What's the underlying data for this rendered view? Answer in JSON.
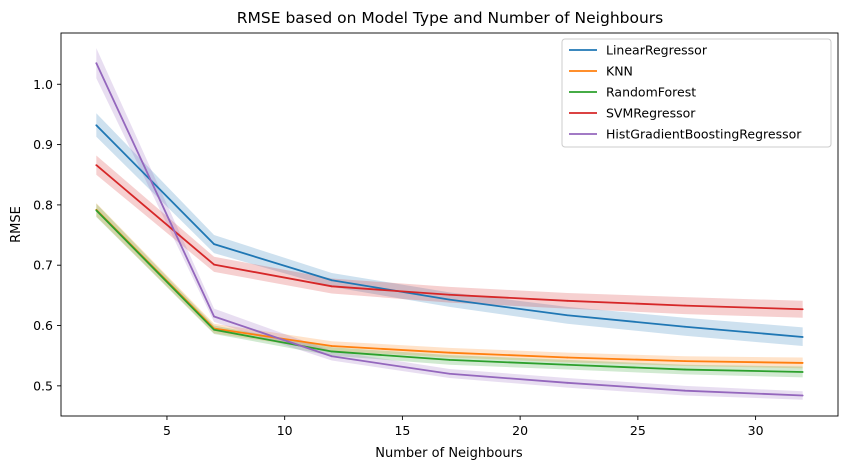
{
  "chart_data": {
    "type": "line",
    "title": "RMSE based on Model Type and Number of Neighbours",
    "xlabel": "Number of Neighbours",
    "ylabel": "RMSE",
    "xlim": [
      0.5,
      33.5
    ],
    "ylim": [
      0.45,
      1.085
    ],
    "x_ticks": [
      5,
      10,
      15,
      20,
      25,
      30
    ],
    "y_ticks": [
      0.5,
      0.6,
      0.7,
      0.8,
      0.9,
      1.0
    ],
    "x_tick_labels": [
      "5",
      "10",
      "15",
      "20",
      "25",
      "30"
    ],
    "y_tick_labels": [
      "0.5",
      "0.6",
      "0.7",
      "0.8",
      "0.9",
      "1.0"
    ],
    "legend_position": "top-right",
    "grid": false,
    "series": [
      {
        "name": "LinearRegressor",
        "color": "#1f77b4",
        "x": [
          2,
          7,
          12,
          17,
          22,
          27,
          32
        ],
        "values": [
          0.932,
          0.735,
          0.675,
          0.643,
          0.617,
          0.598,
          0.581
        ],
        "lower": [
          0.913,
          0.72,
          0.664,
          0.631,
          0.603,
          0.583,
          0.566
        ],
        "upper": [
          0.952,
          0.75,
          0.687,
          0.655,
          0.631,
          0.613,
          0.597
        ]
      },
      {
        "name": "KNN",
        "color": "#ff7f0e",
        "x": [
          2,
          7,
          12,
          17,
          22,
          27,
          32
        ],
        "values": [
          0.792,
          0.595,
          0.566,
          0.555,
          0.547,
          0.541,
          0.538
        ],
        "lower": [
          0.781,
          0.587,
          0.558,
          0.547,
          0.539,
          0.533,
          0.529
        ],
        "upper": [
          0.803,
          0.603,
          0.574,
          0.563,
          0.555,
          0.549,
          0.547
        ]
      },
      {
        "name": "RandomForest",
        "color": "#2ca02c",
        "x": [
          2,
          7,
          12,
          17,
          22,
          27,
          32
        ],
        "values": [
          0.791,
          0.593,
          0.557,
          0.543,
          0.535,
          0.527,
          0.523
        ],
        "lower": [
          0.78,
          0.586,
          0.55,
          0.535,
          0.527,
          0.519,
          0.514
        ],
        "upper": [
          0.802,
          0.6,
          0.564,
          0.551,
          0.543,
          0.535,
          0.532
        ]
      },
      {
        "name": "SVMRegressor",
        "color": "#d62728",
        "x": [
          2,
          7,
          12,
          17,
          22,
          27,
          32
        ],
        "values": [
          0.866,
          0.701,
          0.665,
          0.651,
          0.641,
          0.633,
          0.627
        ],
        "lower": [
          0.85,
          0.689,
          0.653,
          0.638,
          0.628,
          0.619,
          0.613
        ],
        "upper": [
          0.882,
          0.714,
          0.678,
          0.664,
          0.654,
          0.647,
          0.641
        ]
      },
      {
        "name": "HistGradientBoostingRegressor",
        "color": "#9467bd",
        "x": [
          2,
          7,
          12,
          17,
          22,
          27,
          32
        ],
        "values": [
          1.035,
          0.615,
          0.549,
          0.52,
          0.505,
          0.492,
          0.484
        ],
        "lower": [
          1.01,
          0.606,
          0.542,
          0.513,
          0.497,
          0.484,
          0.477
        ],
        "upper": [
          1.06,
          0.628,
          0.558,
          0.528,
          0.513,
          0.5,
          0.491
        ]
      }
    ]
  }
}
